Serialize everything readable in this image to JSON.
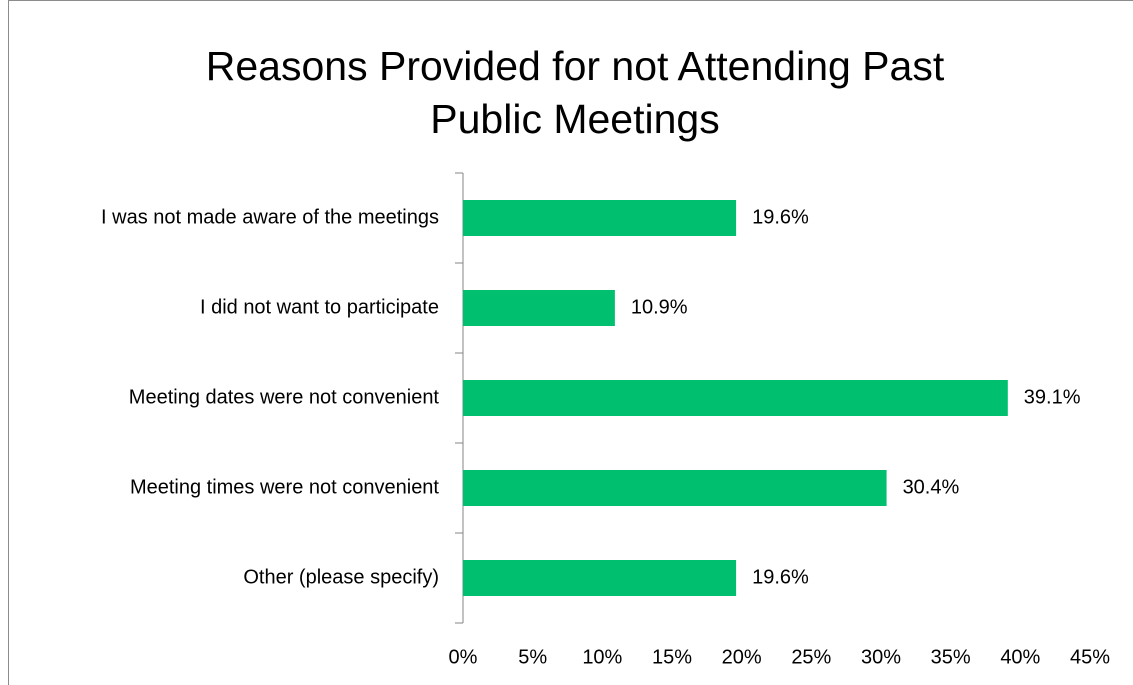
{
  "chart_data": {
    "type": "bar",
    "orientation": "horizontal",
    "title": "Reasons Provided for not Attending Past Public Meetings",
    "categories": [
      "I was not made aware of the meetings",
      "I did not want to participate",
      "Meeting dates were not convenient",
      "Meeting times were not convenient",
      "Other (please specify)"
    ],
    "values": [
      19.6,
      10.9,
      39.1,
      30.4,
      19.6
    ],
    "value_labels": [
      "19.6%",
      "10.9%",
      "39.1%",
      "30.4%",
      "19.6%"
    ],
    "color": "#00bf6f",
    "xlim": [
      0,
      45
    ],
    "xticks": [
      {
        "value": 0,
        "label": "0%"
      },
      {
        "value": 5,
        "label": "5%"
      },
      {
        "value": 10,
        "label": "10%"
      },
      {
        "value": 15,
        "label": "15%"
      },
      {
        "value": 20,
        "label": "20%"
      },
      {
        "value": 25,
        "label": "25%"
      },
      {
        "value": 30,
        "label": "30%"
      },
      {
        "value": 35,
        "label": "35%"
      },
      {
        "value": 40,
        "label": "40%"
      },
      {
        "value": 45,
        "label": "45%"
      }
    ],
    "grid": false
  }
}
